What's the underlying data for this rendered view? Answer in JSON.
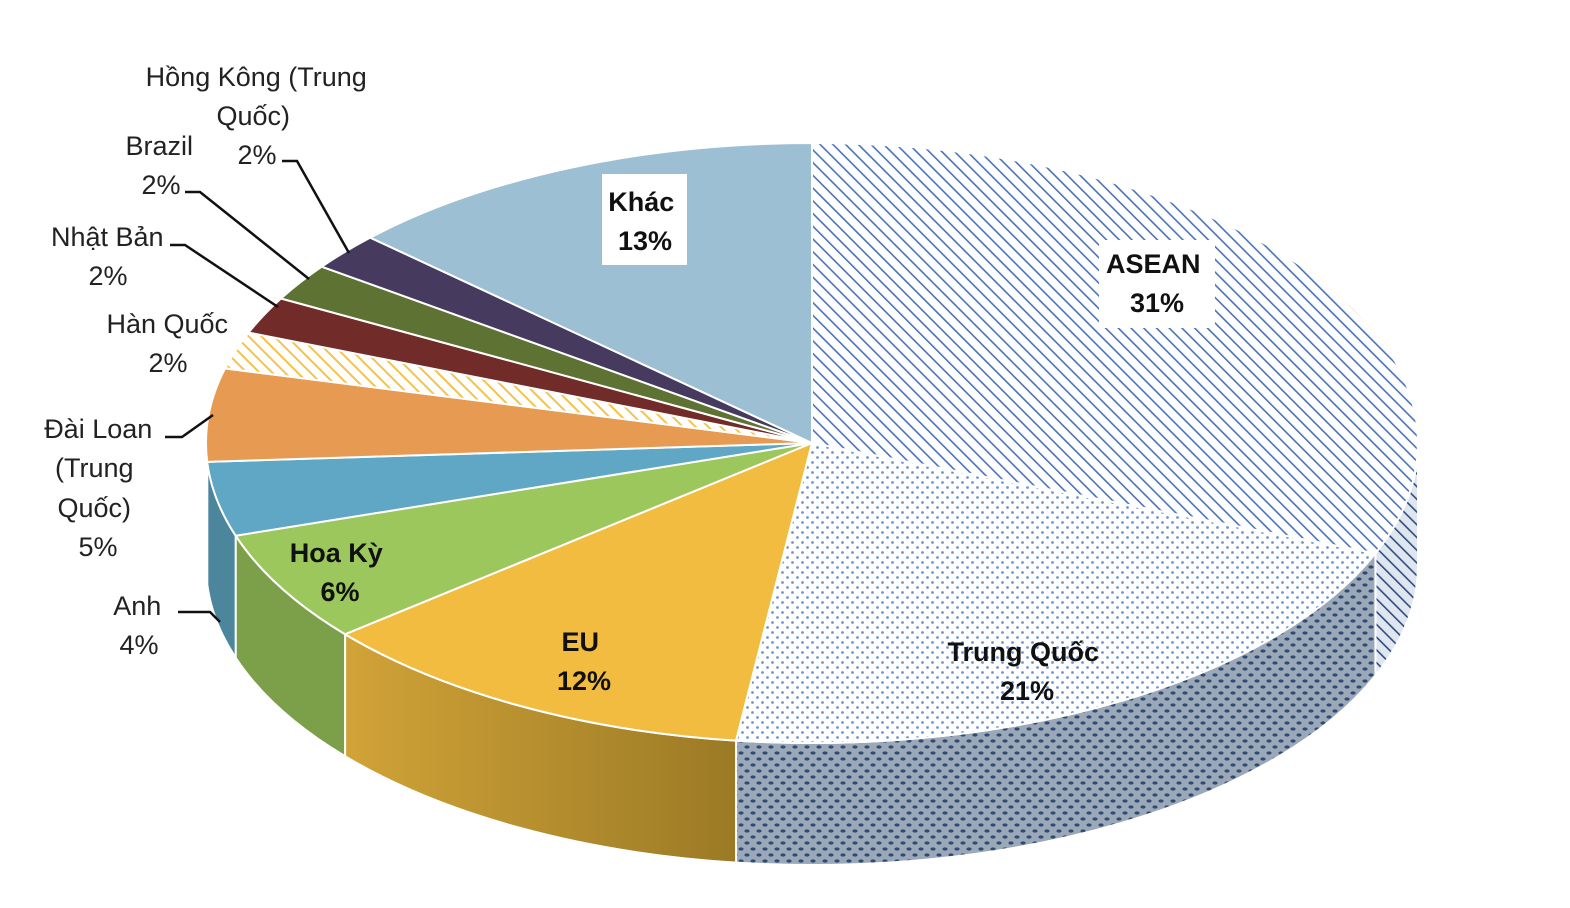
{
  "chart_data": {
    "type": "pie",
    "title": "",
    "style": "3d-pie",
    "unit": "%",
    "series": [
      {
        "name": "ASEAN",
        "value": 31,
        "label": "31%",
        "color": "#4a73b6",
        "pattern": "diagonal-hatch"
      },
      {
        "name": "Trung Quốc",
        "value": 21,
        "label": "21%",
        "color": "#5b8bd0",
        "pattern": "dotted"
      },
      {
        "name": "EU",
        "value": 12,
        "label": "12%",
        "color": "#f1bc3f",
        "pattern": "solid"
      },
      {
        "name": "Hoa Kỳ",
        "value": 6,
        "label": "6%",
        "color": "#9bc75c",
        "pattern": "solid"
      },
      {
        "name": "Anh",
        "value": 4,
        "label": "4%",
        "color": "#5fa7c4",
        "pattern": "solid"
      },
      {
        "name": "Đài Loan (Trung Quốc)",
        "value": 5,
        "label": "5%",
        "color": "#e79a52",
        "pattern": "solid"
      },
      {
        "name": "Hàn Quốc",
        "value": 2,
        "label": "2%",
        "color": "#f3c44a",
        "pattern": "diagonal-hatch"
      },
      {
        "name": "Nhật Bản",
        "value": 2,
        "label": "2%",
        "color": "#712b28",
        "pattern": "solid"
      },
      {
        "name": "Brazil",
        "value": 2,
        "label": "2%",
        "color": "#5e7233",
        "pattern": "solid"
      },
      {
        "name": "Hồng Kông (Trung Quốc)",
        "value": 2,
        "label": "2%",
        "color": "#463a5e",
        "pattern": "solid"
      },
      {
        "name": "Khác",
        "value": 13,
        "label": "13%",
        "color": "#9dbfd3",
        "pattern": "solid"
      }
    ],
    "label_lines": {
      "asean": [
        "ASEAN",
        "31%"
      ],
      "trung_quoc": [
        "Trung Quốc",
        "21%"
      ],
      "eu": [
        "EU",
        "12%"
      ],
      "hoa_ky": [
        "Hoa Kỳ",
        "6%"
      ],
      "anh": [
        "Anh",
        "4%"
      ],
      "dai_loan": [
        "Đài Loan",
        "(Trung",
        "Quốc)",
        "5%"
      ],
      "han_quoc": [
        "Hàn Quốc",
        "2%"
      ],
      "nhat_ban": [
        "Nhật Bản",
        "2%"
      ],
      "brazil": [
        "Brazil",
        "2%"
      ],
      "hong_kong": [
        "Hồng Kông (Trung",
        "Quốc)",
        "2%"
      ],
      "khac": [
        "Khác",
        "13%"
      ]
    }
  }
}
